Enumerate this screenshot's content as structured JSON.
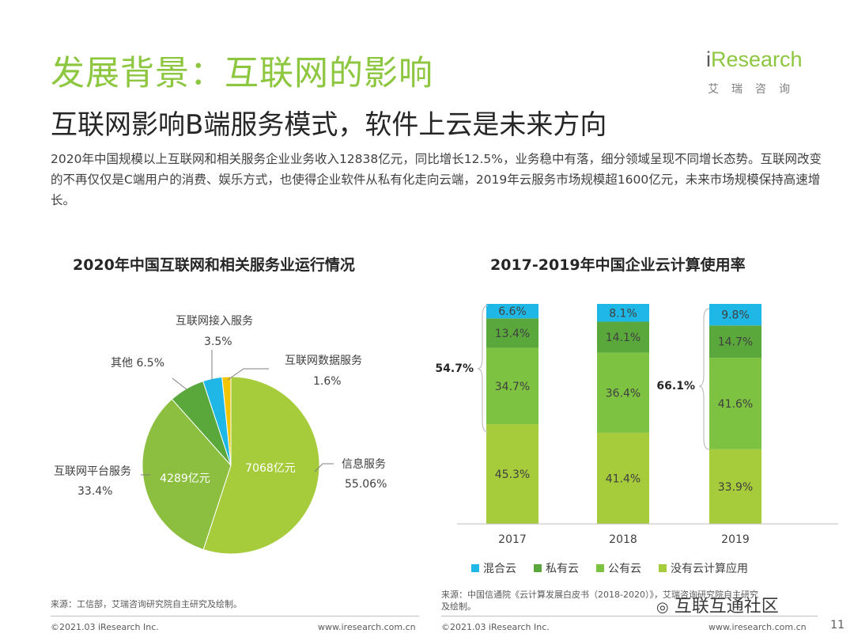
{
  "header": {
    "title": "发展背景：互联网的影响",
    "subtitle": "互联网影响B端服务模式，软件上云是未来方向",
    "paragraph": "2020年中国规模以上互联网和相关服务企业业务收入12838亿元，同比增长12.5%，业务稳中有落，细分领域呈现不同增长态势。互联网改变的不再仅仅是C端用户的消费、娱乐方式，也使得企业软件从私有化走向云端，2019年云服务市场规模超1600亿元，未来市场规模保持高速增长。"
  },
  "logo": {
    "brand_i": "i",
    "brand_rest": "Research",
    "cn": "艾瑞咨询"
  },
  "colors": {
    "accent": "#8dc63f",
    "cyan": "#1fb8e6",
    "dark_green": "#5aa83c",
    "mid_green": "#7dc241",
    "light_green": "#a6cb3b",
    "yellow": "#f2c500"
  },
  "chart_data": [
    {
      "type": "pie",
      "title": "2020年中国互联网和相关服务业运行情况",
      "slices": [
        {
          "name": "信息服务",
          "percent_label": "55.06%",
          "value": 55.06,
          "inner_label": "7068亿元",
          "color": "#a6cb3b"
        },
        {
          "name": "互联网平台服务",
          "percent_label": "33.4%",
          "value": 33.4,
          "inner_label": "4289亿元",
          "color": "#8cbf3f"
        },
        {
          "name": "其他",
          "percent_label": "6.5%",
          "value": 6.5,
          "inner_label": "",
          "color": "#5aa83c"
        },
        {
          "name": "互联网接入服务",
          "percent_label": "3.5%",
          "value": 3.5,
          "inner_label": "",
          "color": "#1fb8e6"
        },
        {
          "name": "互联网数据服务",
          "percent_label": "1.6%",
          "value": 1.6,
          "inner_label": "",
          "color": "#f2c500"
        }
      ]
    },
    {
      "type": "bar",
      "stacked": true,
      "title": "2017-2019年中国企业云计算使用率",
      "categories": [
        "2017",
        "2018",
        "2019"
      ],
      "series": [
        {
          "name": "没有云计算应用",
          "values": [
            45.3,
            41.4,
            33.9
          ],
          "labels": [
            "45.3%",
            "41.4%",
            "33.9%"
          ],
          "color": "#a6cb3b"
        },
        {
          "name": "公有云",
          "values": [
            34.7,
            36.4,
            41.6
          ],
          "labels": [
            "34.7%",
            "36.4%",
            "41.6%"
          ],
          "color": "#7dc241"
        },
        {
          "name": "私有云",
          "values": [
            13.4,
            14.1,
            14.7
          ],
          "labels": [
            "13.4%",
            "14.1%",
            "14.7%"
          ],
          "color": "#5aa83c"
        },
        {
          "name": "混合云",
          "values": [
            6.6,
            8.1,
            9.8
          ],
          "labels": [
            "6.6%",
            "8.1%",
            "9.8%"
          ],
          "color": "#1fb8e6"
        }
      ],
      "legend_order": [
        "混合云",
        "私有云",
        "公有云",
        "没有云计算应用"
      ],
      "brackets": [
        {
          "category": "2017",
          "label": "54.7%"
        },
        {
          "category": "2019",
          "label": "66.1%"
        }
      ],
      "ylim": [
        0,
        100
      ]
    }
  ],
  "footer": {
    "source_left": "来源：工信部，艾瑞咨询研究院自主研究及绘制。",
    "source_right_line1": "来源：中国信通院《云计算发展白皮书（2018-2020）》，艾瑞咨询研究院自主研究",
    "source_right_line2": "及绘制。",
    "copyright_left": "©2021.03 iResearch Inc.",
    "url_left": "www.iresearch.com.cn",
    "copyright_right": "©2021.03 iResearch Inc.",
    "url_right": "www.iresearch.com.cn",
    "page": "11",
    "watermark": "互联互通社区"
  }
}
